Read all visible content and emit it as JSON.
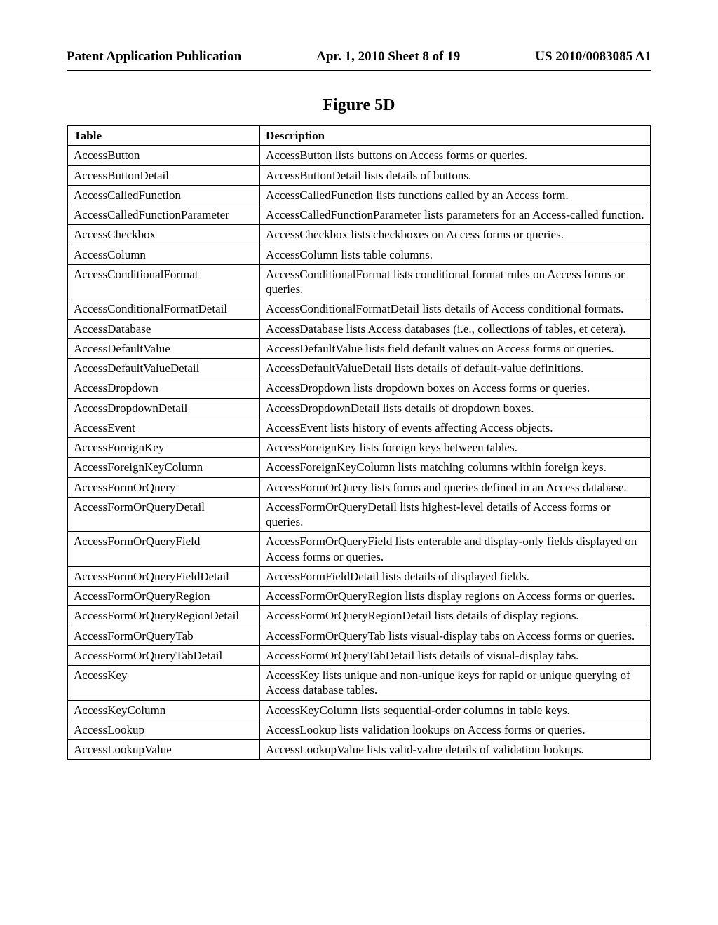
{
  "header": {
    "left": "Patent Application Publication",
    "center": "Apr. 1, 2010  Sheet 8 of 19",
    "right": "US 2010/0083085 A1"
  },
  "figure_title": "Figure 5D",
  "table": {
    "columns": [
      "Table",
      "Description"
    ],
    "rows": [
      [
        "AccessButton",
        "AccessButton lists buttons on Access forms or queries."
      ],
      [
        "AccessButtonDetail",
        "AccessButtonDetail lists details of buttons."
      ],
      [
        "AccessCalledFunction",
        "AccessCalledFunction lists functions called by an Access form."
      ],
      [
        "AccessCalledFunctionParameter",
        "AccessCalledFunctionParameter lists parameters for an Access-called function."
      ],
      [
        "AccessCheckbox",
        "AccessCheckbox lists checkboxes on Access forms or queries."
      ],
      [
        "AccessColumn",
        "AccessColumn lists table columns."
      ],
      [
        "AccessConditionalFormat",
        "AccessConditionalFormat lists conditional format rules on Access forms or queries."
      ],
      [
        "AccessConditionalFormatDetail",
        "AccessConditionalFormatDetail lists details of Access conditional formats."
      ],
      [
        "AccessDatabase",
        "AccessDatabase lists Access databases (i.e., collections of tables, et cetera)."
      ],
      [
        "AccessDefaultValue",
        "AccessDefaultValue lists field default values on Access forms or queries."
      ],
      [
        "AccessDefaultValueDetail",
        "AccessDefaultValueDetail lists details of default-value definitions."
      ],
      [
        "AccessDropdown",
        "AccessDropdown lists dropdown boxes on Access forms or queries."
      ],
      [
        "AccessDropdownDetail",
        "AccessDropdownDetail lists details of dropdown boxes."
      ],
      [
        "AccessEvent",
        "AccessEvent lists history of events affecting Access objects."
      ],
      [
        "AccessForeignKey",
        "AccessForeignKey lists foreign keys between tables."
      ],
      [
        "AccessForeignKeyColumn",
        "AccessForeignKeyColumn lists matching columns within foreign keys."
      ],
      [
        "AccessFormOrQuery",
        "AccessFormOrQuery lists forms and queries defined in an Access database."
      ],
      [
        "AccessFormOrQueryDetail",
        "AccessFormOrQueryDetail lists highest-level details of Access forms or queries."
      ],
      [
        "AccessFormOrQueryField",
        "AccessFormOrQueryField lists enterable and display-only fields displayed on Access forms or queries."
      ],
      [
        "AccessFormOrQueryFieldDetail",
        "AccessFormFieldDetail lists details of displayed fields."
      ],
      [
        "AccessFormOrQueryRegion",
        "AccessFormOrQueryRegion lists display regions on Access forms or queries."
      ],
      [
        "AccessFormOrQueryRegionDetail",
        "AccessFormOrQueryRegionDetail lists details of display regions."
      ],
      [
        "AccessFormOrQueryTab",
        "AccessFormOrQueryTab lists visual-display tabs on Access forms or queries."
      ],
      [
        "AccessFormOrQueryTabDetail",
        "AccessFormOrQueryTabDetail lists details of visual-display tabs."
      ],
      [
        "AccessKey",
        "AccessKey lists unique and non-unique keys for rapid or unique querying of Access database tables."
      ],
      [
        "AccessKeyColumn",
        "AccessKeyColumn lists sequential-order columns in table keys."
      ],
      [
        "AccessLookup",
        "AccessLookup lists validation lookups on Access forms or queries."
      ],
      [
        "AccessLookupValue",
        "AccessLookupValue lists valid-value details of validation lookups."
      ]
    ]
  }
}
